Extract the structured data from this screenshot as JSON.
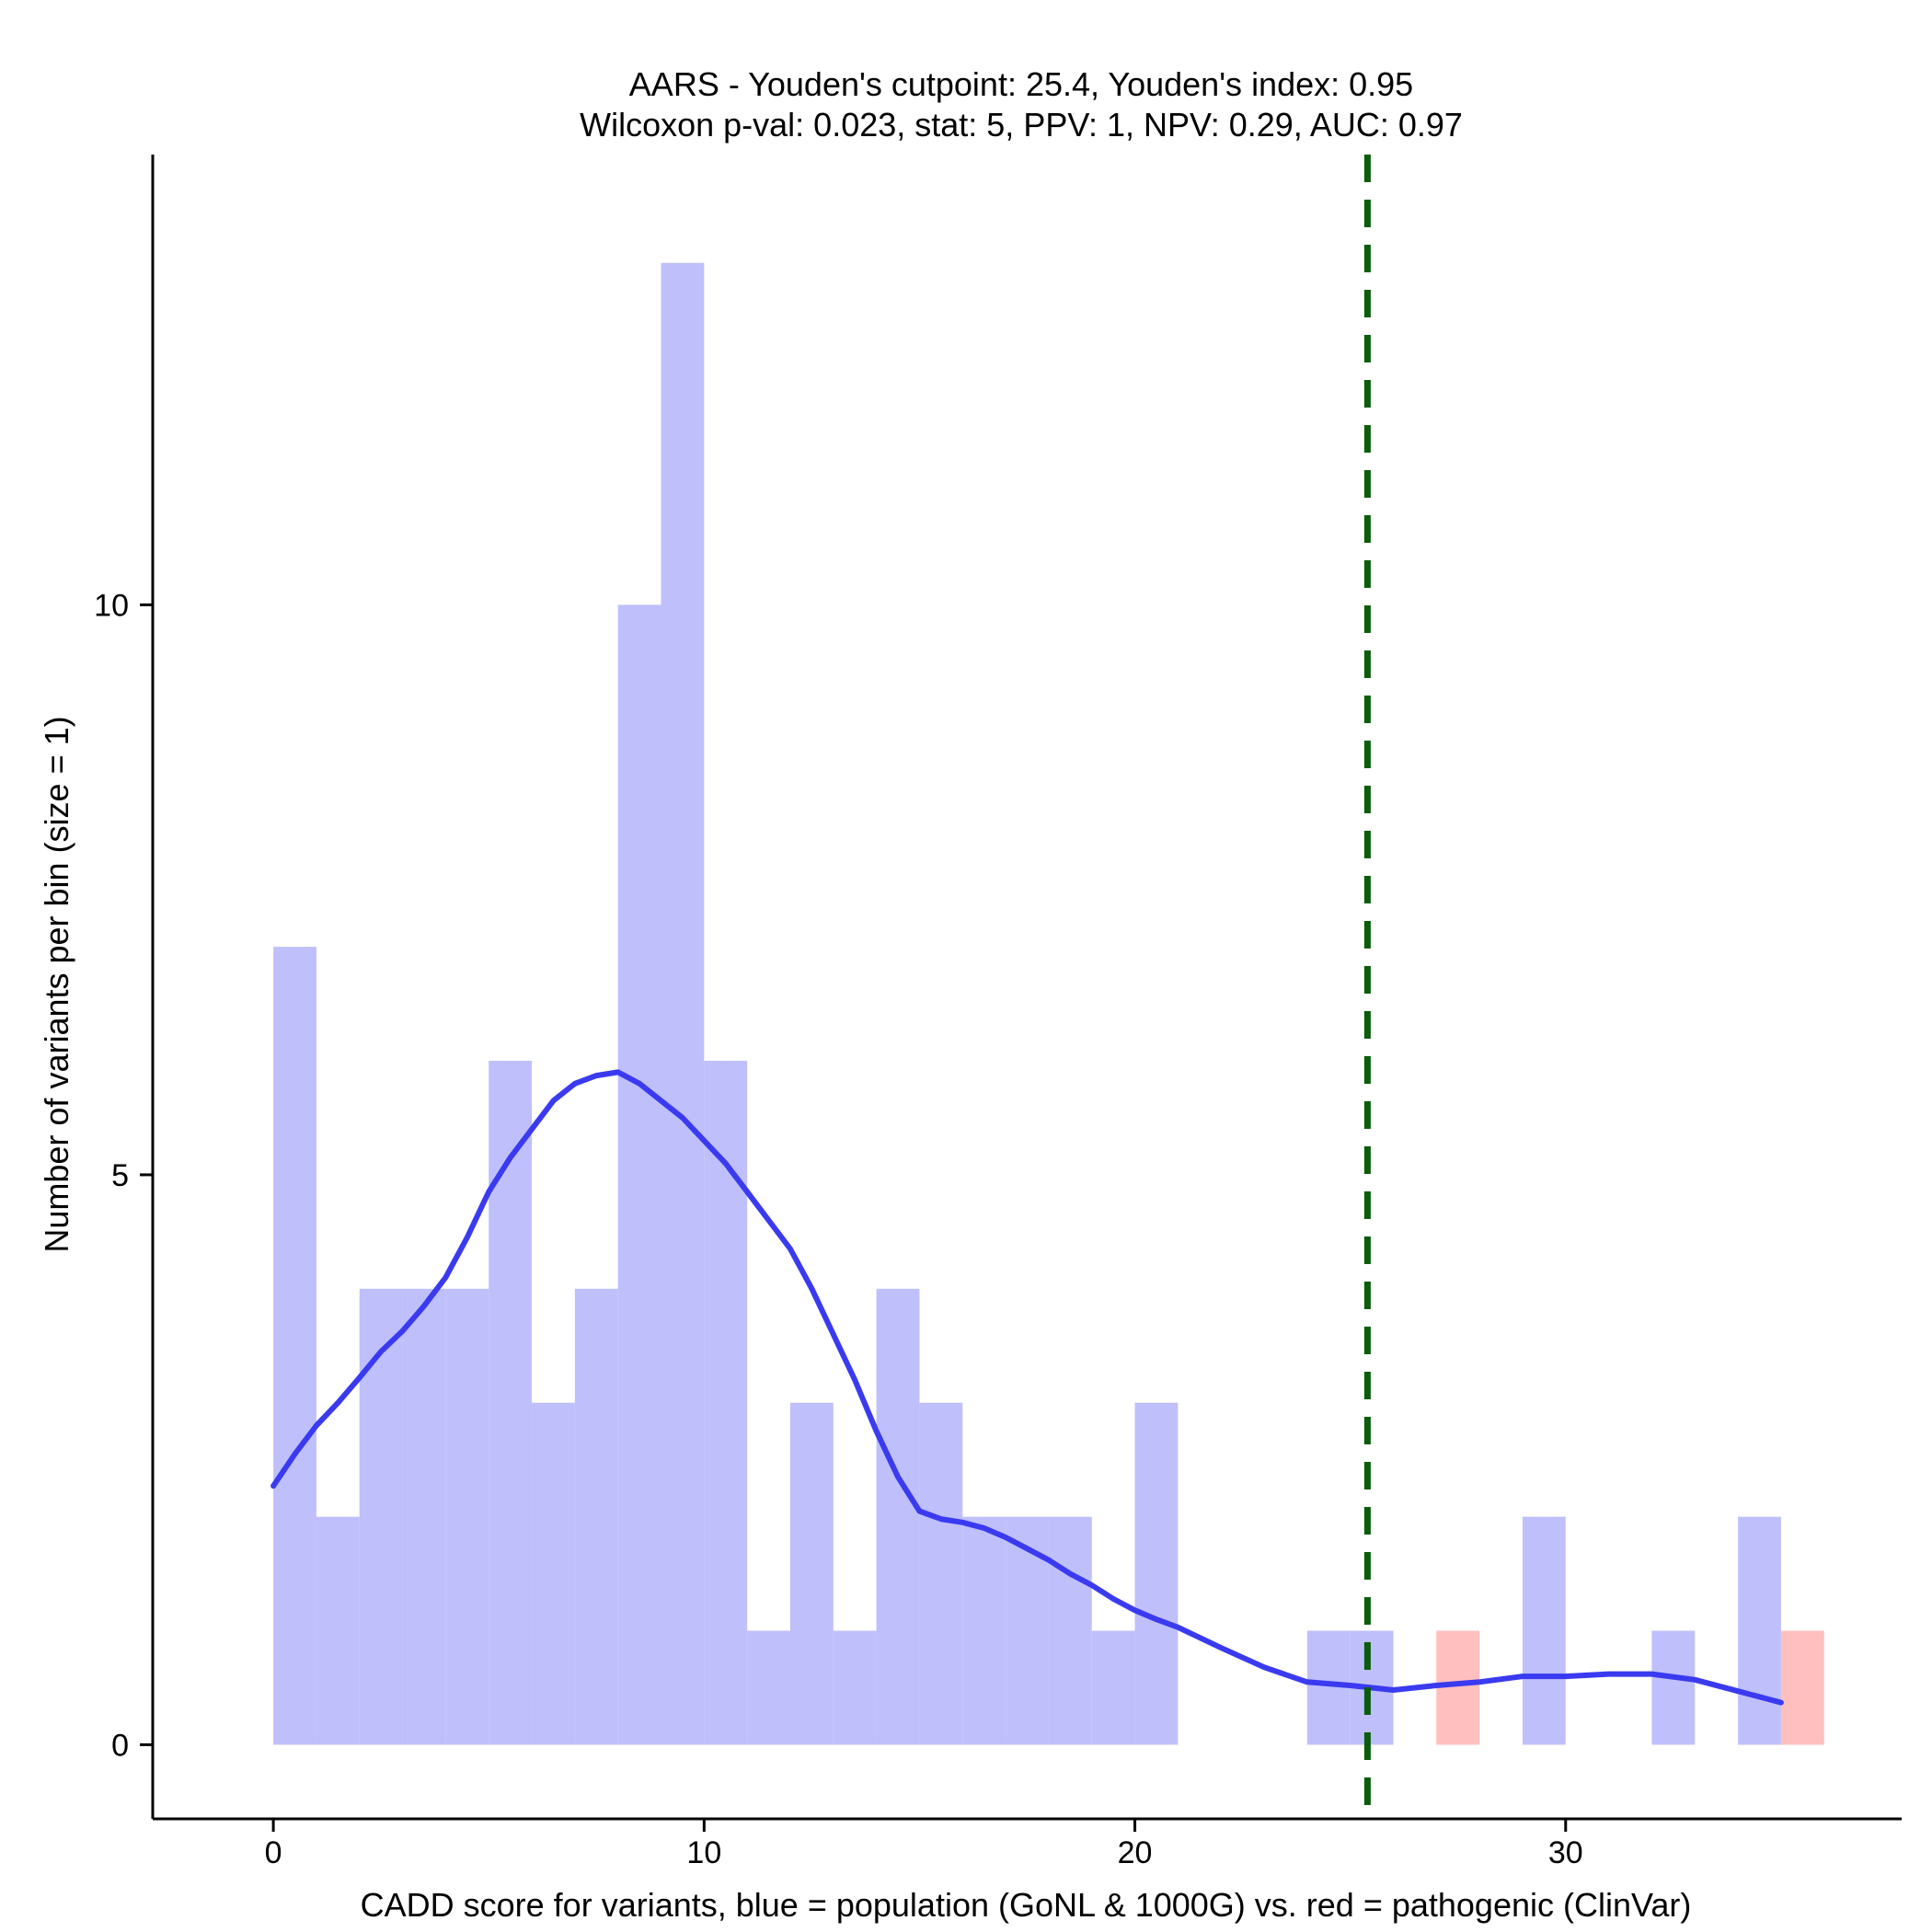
{
  "chart_data": {
    "type": "bar",
    "title": "AARS - Youden's cutpoint: 25.4, Youden's index: 0.95",
    "subtitle": "Wilcoxon p-val: 0.023, stat: 5, PPV: 1, NPV: 0.29, AUC: 0.97",
    "xlabel": "CADD score for variants, blue = population (GoNL & 1000G) vs. red = pathogenic (ClinVar)",
    "ylabel": "Number of variants per bin (size = 1)",
    "xlim": [
      -2.8,
      37.8
    ],
    "ylim": [
      -0.65,
      13.95
    ],
    "x_ticks": [
      0,
      10,
      20,
      30
    ],
    "y_ticks": [
      0,
      5,
      10
    ],
    "x_tick_labels": [
      "0",
      "10",
      "20",
      "30"
    ],
    "y_tick_labels": [
      "0",
      "5",
      "10"
    ],
    "bin_size": 1,
    "series": [
      {
        "name": "population (GoNL & 1000G)",
        "color": "#bfbffc",
        "bin_starts": [
          0,
          1,
          2,
          3,
          4,
          5,
          6,
          7,
          8,
          9,
          10,
          11,
          12,
          13,
          14,
          15,
          16,
          17,
          18,
          19,
          20,
          24,
          25,
          29,
          32,
          34
        ],
        "values": [
          7,
          2,
          4,
          4,
          4,
          6,
          3,
          4,
          10,
          13,
          6,
          1,
          3,
          1,
          4,
          3,
          2,
          2,
          2,
          1,
          3,
          1,
          1,
          2,
          1,
          2
        ]
      },
      {
        "name": "pathogenic (ClinVar)",
        "color": "#ffbfbf",
        "bin_starts": [
          27,
          35
        ],
        "values": [
          1,
          1
        ]
      }
    ],
    "density_curve": {
      "name": "population density",
      "color": "#3a3af0",
      "x": [
        0,
        0.5,
        1,
        1.5,
        2,
        2.5,
        3,
        3.5,
        4,
        4.5,
        5,
        5.5,
        6,
        6.5,
        7,
        7.5,
        8,
        8.5,
        9,
        9.5,
        10,
        10.5,
        11,
        11.5,
        12,
        12.5,
        13,
        13.5,
        14,
        14.5,
        15,
        15.5,
        16,
        16.5,
        17,
        17.5,
        18,
        18.5,
        19,
        19.5,
        20,
        20.5,
        21,
        22,
        23,
        24,
        25,
        26,
        27,
        28,
        29,
        30,
        31,
        32,
        33,
        34,
        35
      ],
      "y": [
        2.27,
        2.55,
        2.8,
        3.0,
        3.22,
        3.45,
        3.63,
        3.85,
        4.1,
        4.45,
        4.85,
        5.15,
        5.4,
        5.65,
        5.8,
        5.87,
        5.9,
        5.8,
        5.65,
        5.5,
        5.3,
        5.1,
        4.85,
        4.6,
        4.35,
        4.0,
        3.6,
        3.2,
        2.75,
        2.35,
        2.05,
        1.98,
        1.95,
        1.9,
        1.82,
        1.72,
        1.62,
        1.5,
        1.4,
        1.28,
        1.18,
        1.1,
        1.03,
        0.85,
        0.68,
        0.55,
        0.52,
        0.48,
        0.52,
        0.55,
        0.6,
        0.6,
        0.62,
        0.62,
        0.57,
        0.47,
        0.37
      ]
    },
    "cutpoint": {
      "x": 25.4,
      "label": "Youden's cutpoint",
      "color": "#0b5c0b"
    }
  }
}
